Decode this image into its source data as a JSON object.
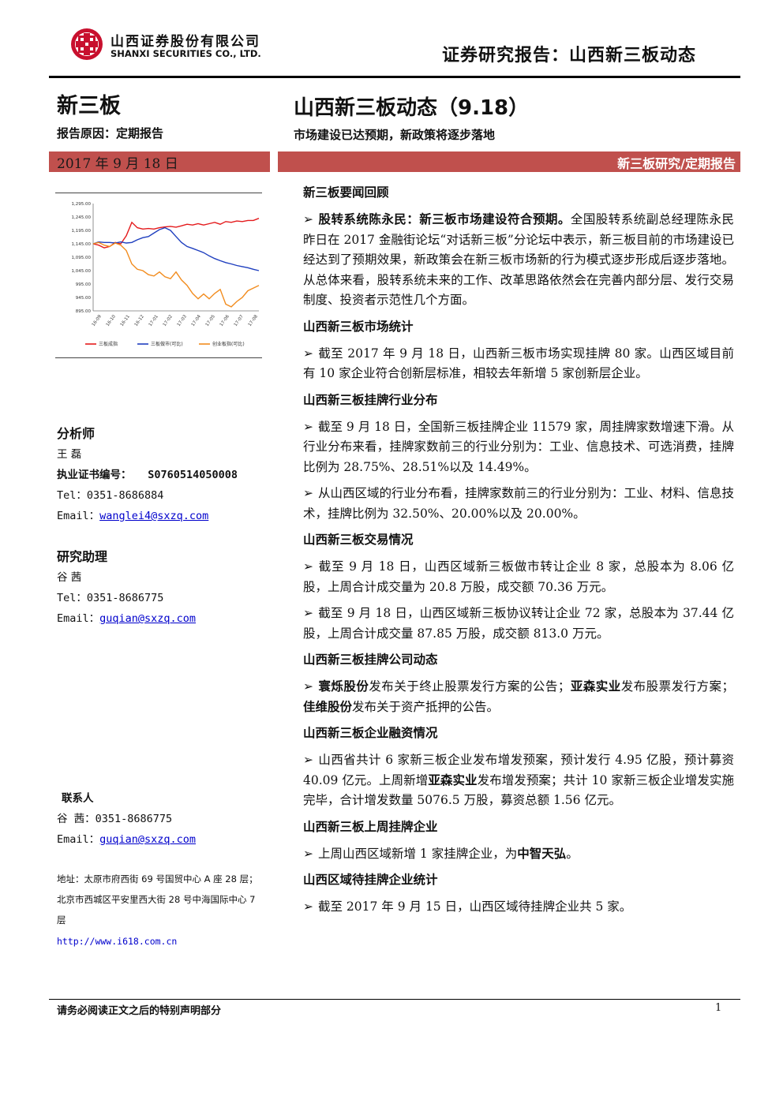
{
  "header": {
    "company_cn": "山西证券股份有限公司",
    "company_en": "SHANXI SECURITIES CO., LTD.",
    "report_type": "证券研究报告：山西新三板动态"
  },
  "left": {
    "category": "新三板",
    "reason": "报告原因：定期报告",
    "date": "2017 年 9 月 18 日",
    "analyst": {
      "heading": "分析师",
      "name": "王 磊",
      "cert_label": "执业证书编号：",
      "cert_no": "S0760514050008",
      "tel": "Tel：0351-8686884",
      "email_label": "Email：",
      "email": "wanglei4@sxzq.com"
    },
    "assistant": {
      "heading": "研究助理",
      "name": "谷 茜",
      "tel": "Tel：0351-8686775",
      "email_label": "Email：",
      "email": "guqian@sxzq.com"
    },
    "contact": {
      "heading": "联系人",
      "tel": "谷 茜：0351-8686775",
      "email_label": "Email：",
      "email": "guqian@sxzq.com",
      "address1": "地址：太原市府西街 69 号国贸中心 A 座 28 层；",
      "address2": "北京市西城区平安里西大街 28 号中海国际中心 7",
      "address3": "层",
      "website": "http://www.i618.com.cn"
    }
  },
  "chart_data": {
    "type": "line",
    "title": "",
    "y_ticks": [
      "1,295.00",
      "1,245.00",
      "1,195.00",
      "1,145.00",
      "1,095.00",
      "1,045.00",
      "995.00",
      "945.00",
      "895.00"
    ],
    "ylim": [
      895,
      1295
    ],
    "x_ticks": [
      "16-09",
      "16-10",
      "16-11",
      "16-12",
      "17-01",
      "17-02",
      "17-03",
      "17-04",
      "17-05",
      "17-06",
      "17-07",
      "17-08"
    ],
    "series": [
      {
        "name": "三板成指",
        "color": "#e41a1c",
        "values": [
          1145,
          1140,
          1130,
          1135,
          1150,
          1145,
          1175,
          1225,
          1205,
          1200,
          1202,
          1200,
          1205,
          1208,
          1210,
          1207,
          1212,
          1218,
          1215,
          1220,
          1215,
          1220,
          1225,
          1218,
          1228,
          1225,
          1230,
          1228,
          1232,
          1232,
          1240
        ]
      },
      {
        "name": "三板做市(可比)",
        "color": "#1f3fbf",
        "values": [
          1145,
          1152,
          1150,
          1150,
          1148,
          1152,
          1148,
          1150,
          1160,
          1168,
          1172,
          1185,
          1198,
          1205,
          1195,
          1172,
          1150,
          1135,
          1128,
          1120,
          1112,
          1100,
          1090,
          1082,
          1075,
          1070,
          1064,
          1060,
          1056,
          1050,
          1045
        ]
      },
      {
        "name": "创业板指(可比)",
        "color": "#f28c1e",
        "values": [
          1145,
          1150,
          1140,
          1135,
          1148,
          1140,
          1120,
          1070,
          1050,
          1045,
          1030,
          1025,
          1040,
          1022,
          1015,
          1040,
          1010,
          990,
          960,
          940,
          958,
          940,
          960,
          975,
          920,
          910,
          930,
          945,
          970,
          980,
          990
        ]
      }
    ]
  },
  "right": {
    "title": "山西新三板动态（9.18）",
    "subtitle": "市场建设已达预期，新政策将逐步落地",
    "tag": "新三板研究/定期报告",
    "sections": [
      {
        "heading": "新三板要闻回顾",
        "paragraphs": [
          {
            "bold": "股转系统陈永民：新三板市场建设符合预期。",
            "text": "全国股转系统副总经理陈永民昨日在 2017 金融街论坛“对话新三板”分论坛中表示，新三板目前的市场建设已经达到了预期效果，新政策会在新三板市场新的行为模式逐步形成后逐步落地。从总体来看，股转系统未来的工作、改革思路依然会在完善内部分层、发行交易制度、投资者示范性几个方面。"
          }
        ]
      },
      {
        "heading": "山西新三板市场统计",
        "paragraphs": [
          {
            "text": "截至 2017 年 9 月 18 日，山西新三板市场实现挂牌 80 家。山西区域目前有 10 家企业符合创新层标准，相较去年新增 5 家创新层企业。"
          }
        ]
      },
      {
        "heading": "山西新三板挂牌行业分布",
        "paragraphs": [
          {
            "text": "截至 9 月 18 日，全国新三板挂牌企业 11579 家，周挂牌家数增速下滑。从行业分布来看，挂牌家数前三的行业分别为：工业、信息技术、可选消费，挂牌比例为 28.75%、28.51%以及 14.49%。"
          },
          {
            "text": "从山西区域的行业分布看，挂牌家数前三的行业分别为：工业、材料、信息技术，挂牌比例为 32.50%、20.00%以及 20.00%。"
          }
        ]
      },
      {
        "heading": "山西新三板交易情况",
        "paragraphs": [
          {
            "text": "截至 9 月 18 日，山西区域新三板做市转让企业 8 家，总股本为 8.06 亿股，上周合计成交量为 20.8 万股，成交额 70.36 万元。"
          },
          {
            "text": "截至 9 月 18 日，山西区域新三板协议转让企业 72 家，总股本为 37.44 亿股，上周合计成交量 87.85 万股，成交额 813.0 万元。"
          }
        ]
      },
      {
        "heading": "山西新三板挂牌公司动态",
        "paragraphs": [
          {
            "parts": [
              [
                "b",
                "寰烁股份"
              ],
              [
                "t",
                "发布关于终止股票发行方案的公告；"
              ],
              [
                "b",
                "亚森实业"
              ],
              [
                "t",
                "发布股票发行方案；"
              ],
              [
                "b",
                "佳维股份"
              ],
              [
                "t",
                "发布关于资产抵押的公告。"
              ]
            ]
          }
        ]
      },
      {
        "heading": "山西新三板企业融资情况",
        "paragraphs": [
          {
            "parts": [
              [
                "t",
                "山西省共计 6 家新三板企业发布增发预案，预计发行 4.95 亿股，预计募资 40.09 亿元。上周新增"
              ],
              [
                "b",
                "亚森实业"
              ],
              [
                "t",
                "发布增发预案；共计 10 家新三板企业增发实施完毕，合计增发数量 5076.5 万股，募资总额 1.56 亿元。"
              ]
            ]
          }
        ]
      },
      {
        "heading": "山西新三板上周挂牌企业",
        "paragraphs": [
          {
            "parts": [
              [
                "t",
                "上周山西区域新增 1 家挂牌企业，为"
              ],
              [
                "b",
                "中智天弘"
              ],
              [
                "t",
                "。"
              ]
            ]
          }
        ]
      },
      {
        "heading": "山西区域待挂牌企业统计",
        "paragraphs": [
          {
            "text": "截至 2017 年 9 月 15 日，山西区域待挂牌企业共 5 家。"
          }
        ]
      }
    ]
  },
  "footer": {
    "notice": "请务必阅读正文之后的特别声明部分",
    "page": "1"
  },
  "colors": {
    "accent": "#c0504d"
  }
}
